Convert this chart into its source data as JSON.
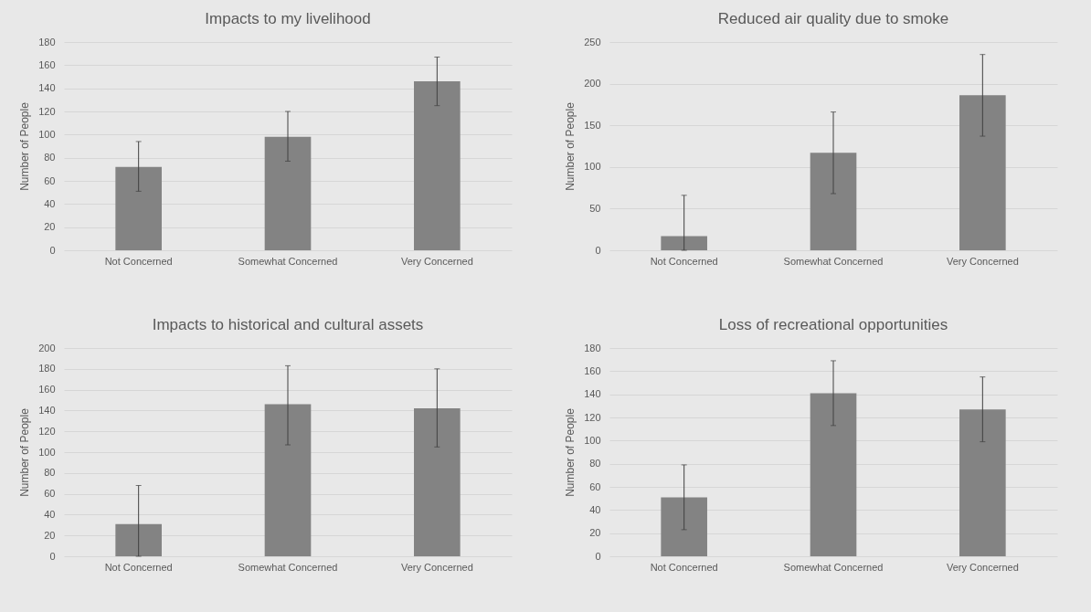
{
  "chart_data": [
    {
      "type": "bar",
      "title": "Impacts to my livelihood",
      "ylabel": "Number of People",
      "categories": [
        "Not Concerned",
        "Somewhat Concerned",
        "Very Concerned"
      ],
      "values": [
        72,
        98,
        146
      ],
      "errors": [
        [
          51,
          94
        ],
        [
          77,
          120
        ],
        [
          125,
          167
        ]
      ],
      "color": "#838383",
      "ylim": [
        0,
        180
      ],
      "yticks": [
        0,
        20,
        40,
        60,
        80,
        100,
        120,
        140,
        160,
        180
      ],
      "grid": "y"
    },
    {
      "type": "bar",
      "title": "Reduced air quality due to smoke",
      "ylabel": "Number of People",
      "categories": [
        "Not Concerned",
        "Somewhat Concerned",
        "Very Concerned"
      ],
      "values": [
        17,
        117,
        186
      ],
      "errors": [
        [
          0,
          66
        ],
        [
          68,
          166
        ],
        [
          137,
          235
        ]
      ],
      "color": "#838383",
      "ylim": [
        0,
        250
      ],
      "yticks": [
        0,
        50,
        100,
        150,
        200,
        250
      ],
      "grid": "y"
    },
    {
      "type": "bar",
      "title": "Impacts to historical and cultural assets",
      "ylabel": "Number of People",
      "categories": [
        "Not Concerned",
        "Somewhat Concerned",
        "Very Concerned"
      ],
      "values": [
        31,
        146,
        142
      ],
      "errors": [
        [
          0,
          68
        ],
        [
          107,
          183
        ],
        [
          105,
          180
        ]
      ],
      "color": "#838383",
      "ylim": [
        0,
        200
      ],
      "yticks": [
        0,
        20,
        40,
        60,
        80,
        100,
        120,
        140,
        160,
        180,
        200
      ],
      "grid": "y"
    },
    {
      "type": "bar",
      "title": "Loss of recreational opportunities",
      "ylabel": "Number of People",
      "categories": [
        "Not Concerned",
        "Somewhat Concerned",
        "Very Concerned"
      ],
      "values": [
        51,
        141,
        127
      ],
      "errors": [
        [
          23,
          79
        ],
        [
          113,
          169
        ],
        [
          99,
          155
        ]
      ],
      "color": "#838383",
      "ylim": [
        0,
        180
      ],
      "yticks": [
        0,
        20,
        40,
        60,
        80,
        100,
        120,
        140,
        160,
        180
      ],
      "grid": "y"
    }
  ]
}
